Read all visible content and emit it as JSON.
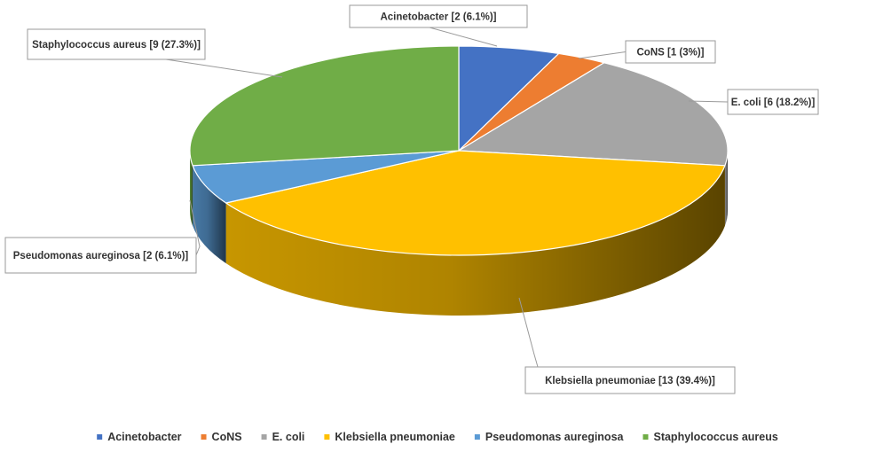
{
  "chart_data": {
    "type": "pie",
    "style": "3d",
    "title": "",
    "legend_position": "bottom",
    "slices": [
      {
        "label": "Acinetobacter",
        "value": 2,
        "percent": "6.1%",
        "color": "#4472C4"
      },
      {
        "label": "CoNS",
        "value": 1,
        "percent": "3%",
        "color": "#ED7D31"
      },
      {
        "label": "E. coli",
        "value": 6,
        "percent": "18.2%",
        "color": "#A5A5A5"
      },
      {
        "label": "Klebsiella pneumoniae",
        "value": 13,
        "percent": "39.4%",
        "color": "#FFC000"
      },
      {
        "label": "Pseudomonas aureginosa",
        "value": 2,
        "percent": "6.1%",
        "color": "#5B9BD5"
      },
      {
        "label": "Staphylococcus aureus",
        "value": 9,
        "percent": "27.3%",
        "color": "#70AD47"
      }
    ]
  }
}
